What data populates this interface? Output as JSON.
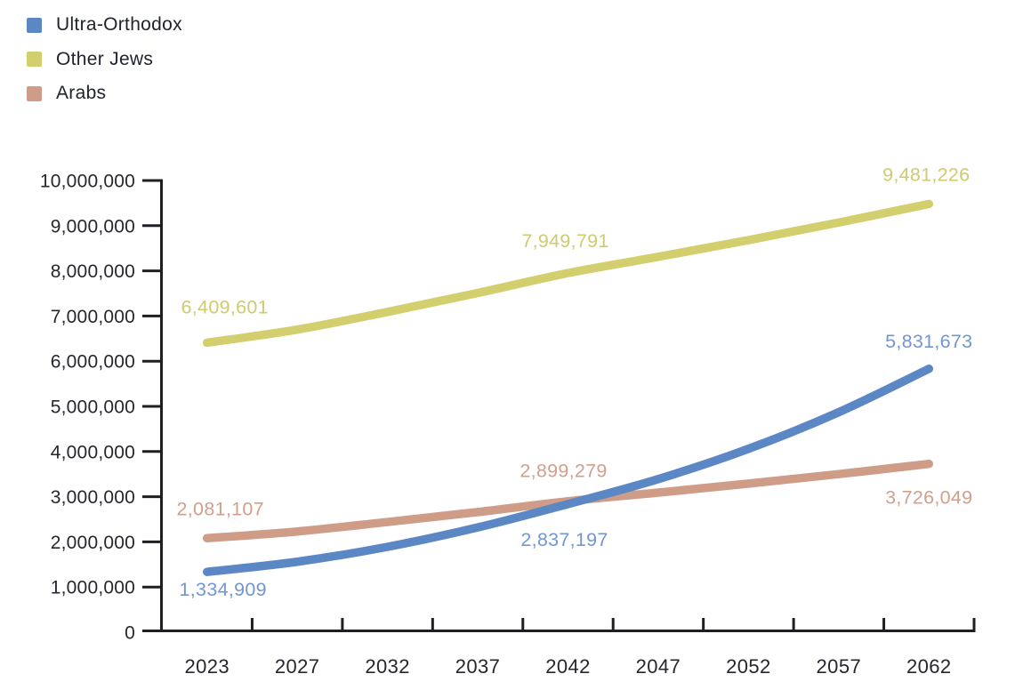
{
  "page": {
    "background": "#ffffff"
  },
  "legend": {
    "position": "top-left",
    "items": [
      {
        "label": "Ultra-Orthodox"
      },
      {
        "label": "Other Jews"
      },
      {
        "label": "Arabs"
      }
    ]
  },
  "chart_data": {
    "type": "line",
    "title": "",
    "xlabel": "",
    "ylabel": "",
    "grid": "off",
    "legend_position": "top-left",
    "axis_color": "#1f1f23",
    "text_color": "#26262e",
    "ylim": [
      0,
      10000000
    ],
    "y_tick_step": 1000000,
    "y_tick_labels": [
      "0",
      "1,000,000",
      "2,000,000",
      "3,000,000",
      "4,000,000",
      "5,000,000",
      "6,000,000",
      "7,000,000",
      "8,000,000",
      "9,000,000",
      "10,000,000"
    ],
    "x_categories": [
      "2023",
      "2027",
      "2032",
      "2037",
      "2042",
      "2047",
      "2052",
      "2057",
      "2062"
    ],
    "series": [
      {
        "name": "Ultra-Orthodox",
        "color": "#5b87c5",
        "label_color": "#7296d4",
        "values": [
          1334909,
          1560000,
          1890000,
          2320000,
          2837197,
          3390000,
          4060000,
          4870000,
          5831673
        ],
        "point_labels": [
          {
            "index": 0,
            "text": "1,334,909",
            "dx": 18,
            "dy": 20
          },
          {
            "index": 4,
            "text": "2,837,197",
            "dx": -4,
            "dy": 40
          },
          {
            "index": 8,
            "text": "5,831,673",
            "dx": 0,
            "dy": -31
          }
        ]
      },
      {
        "name": "Other Jews",
        "color": "#d3cf6e",
        "label_color": "#cfcb70",
        "values": [
          6409601,
          6700000,
          7090000,
          7510000,
          7949791,
          8310000,
          8680000,
          9070000,
          9481226
        ],
        "point_labels": [
          {
            "index": 0,
            "text": "6,409,601",
            "dx": 20,
            "dy": -40
          },
          {
            "index": 4,
            "text": "7,949,791",
            "dx": -3,
            "dy": -36
          },
          {
            "index": 8,
            "text": "9,481,226",
            "dx": -3,
            "dy": -33
          }
        ]
      },
      {
        "name": "Arabs",
        "color": "#cf9c87",
        "label_color": "#d0a08d",
        "values": [
          2081107,
          2230000,
          2440000,
          2660000,
          2899279,
          3090000,
          3290000,
          3500000,
          3726049
        ],
        "point_labels": [
          {
            "index": 0,
            "text": "2,081,107",
            "dx": 15,
            "dy": -33
          },
          {
            "index": 4,
            "text": "2,899,279",
            "dx": -5,
            "dy": -34
          },
          {
            "index": 8,
            "text": "3,726,049",
            "dx": 0,
            "dy": 38
          }
        ]
      }
    ]
  }
}
